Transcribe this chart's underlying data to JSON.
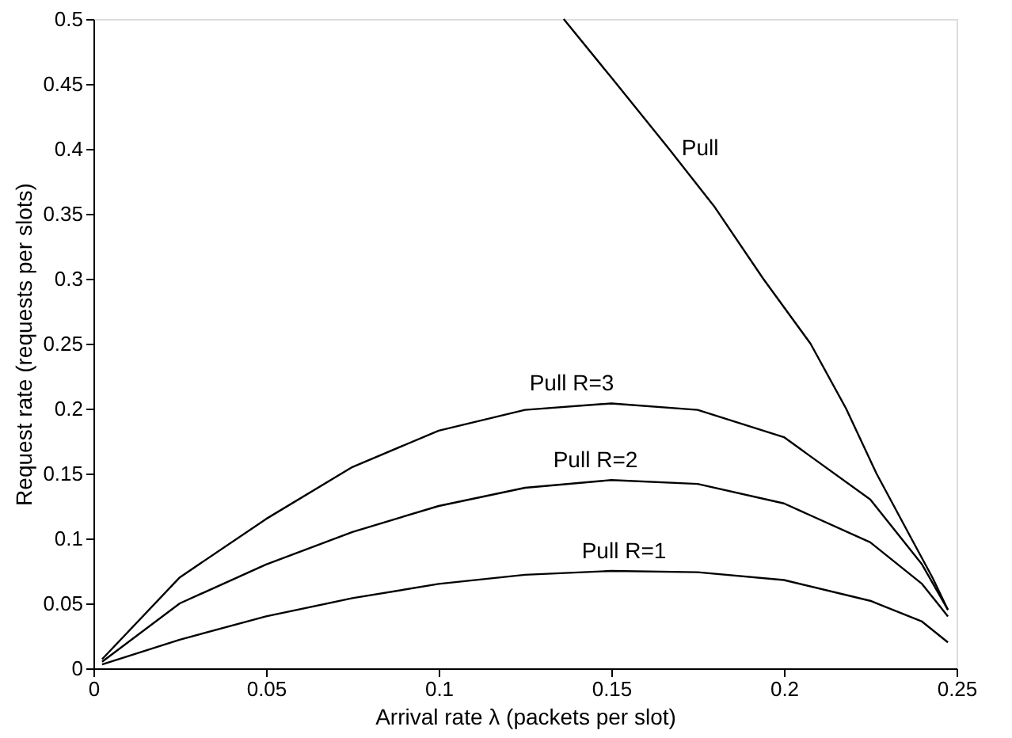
{
  "chart_data": {
    "type": "line",
    "xlabel": "Arrival rate λ (packets per slot)",
    "ylabel": "Request rate (requests per slots)",
    "xlim": [
      0,
      0.25
    ],
    "ylim": [
      0,
      0.5
    ],
    "xticks": [
      0,
      0.05,
      0.1,
      0.15,
      0.2,
      0.25
    ],
    "yticks": [
      0,
      0.05,
      0.1,
      0.15,
      0.2,
      0.25,
      0.3,
      0.35,
      0.4,
      0.45,
      0.5
    ],
    "grid": false,
    "marker": "none",
    "line_style": "solid",
    "series": [
      {
        "name": "Pull",
        "color": "#000000",
        "x": [
          0.1362,
          0.15,
          0.1667,
          0.18,
          0.194,
          0.2077,
          0.218,
          0.2268,
          0.2369,
          0.243,
          0.2475
        ],
        "values": [
          0.5,
          0.455,
          0.4,
          0.355,
          0.3,
          0.25,
          0.2,
          0.15,
          0.1,
          0.07,
          0.045
        ]
      },
      {
        "name": "Pull R=3",
        "color": "#000000",
        "x": [
          0.0025,
          0.025,
          0.05,
          0.075,
          0.1,
          0.125,
          0.15,
          0.175,
          0.2,
          0.225,
          0.24,
          0.2475
        ],
        "values": [
          0.007,
          0.07,
          0.115,
          0.155,
          0.183,
          0.199,
          0.204,
          0.199,
          0.178,
          0.13,
          0.08,
          0.045
        ]
      },
      {
        "name": "Pull R=2",
        "color": "#000000",
        "x": [
          0.0025,
          0.025,
          0.05,
          0.075,
          0.1,
          0.125,
          0.15,
          0.175,
          0.2,
          0.225,
          0.24,
          0.2475
        ],
        "values": [
          0.005,
          0.05,
          0.08,
          0.105,
          0.125,
          0.139,
          0.145,
          0.142,
          0.127,
          0.097,
          0.065,
          0.04
        ]
      },
      {
        "name": "Pull R=1",
        "color": "#000000",
        "x": [
          0.0025,
          0.025,
          0.05,
          0.075,
          0.1,
          0.125,
          0.15,
          0.175,
          0.2,
          0.225,
          0.24,
          0.2475
        ],
        "values": [
          0.003,
          0.022,
          0.04,
          0.054,
          0.065,
          0.072,
          0.075,
          0.074,
          0.068,
          0.052,
          0.036,
          0.02
        ]
      }
    ]
  }
}
